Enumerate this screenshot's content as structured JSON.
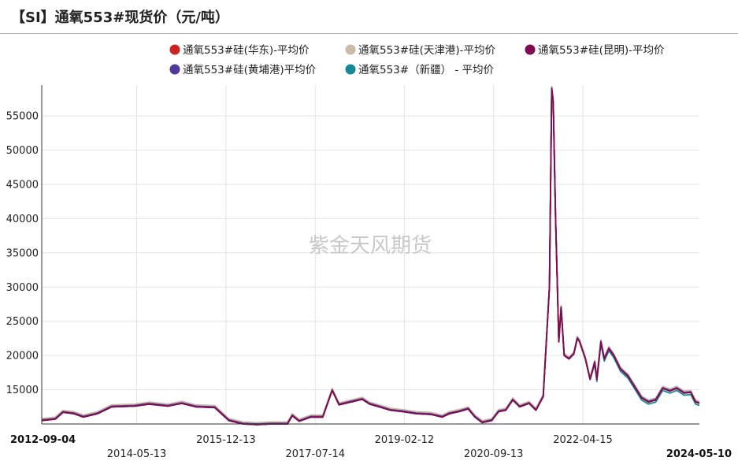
{
  "header": {
    "title": "【SI】通氧553#现货价（元/吨）"
  },
  "watermark": "紫金天风期货",
  "chart_data": {
    "type": "line",
    "title": "【SI】通氧553#现货价（元/吨）",
    "y_ticks": [
      15000,
      20000,
      25000,
      30000,
      35000,
      40000,
      45000,
      50000,
      55000
    ],
    "ylim": [
      10000,
      59500
    ],
    "x_range": [
      "2012-09-04",
      "2024-05-10"
    ],
    "x_ticks": [
      {
        "label": "2012-09-04",
        "bold": true
      },
      {
        "label": "2014-05-13",
        "bold": false
      },
      {
        "label": "2015-12-13",
        "bold": false
      },
      {
        "label": "2017-07-14",
        "bold": false
      },
      {
        "label": "2019-02-12",
        "bold": false
      },
      {
        "label": "2020-09-13",
        "bold": false
      },
      {
        "label": "2022-04-15",
        "bold": false
      },
      {
        "label": "2024-05-10",
        "bold": true
      }
    ],
    "grid": true,
    "legend_position": "top",
    "series": [
      {
        "name": "通氧553#硅(华东)-平均价",
        "color": "#cc2222",
        "offset": 0
      },
      {
        "name": "通氧553#硅(天津港)-平均价",
        "color": "#cbbba6",
        "offset": 300
      },
      {
        "name": "通氧553#硅(昆明)-平均价",
        "color": "#7d0c52",
        "offset": 0
      },
      {
        "name": "通氧553#硅(黄埔港)平均价",
        "color": "#4f3a9a",
        "offset": 100
      },
      {
        "name": "通氧553#（新疆）  - 平均价",
        "color": "#138a96",
        "offset": -300
      }
    ],
    "base_points": [
      [
        "2012-09-04",
        10500
      ],
      [
        "2012-12-01",
        10700
      ],
      [
        "2013-01-20",
        11700
      ],
      [
        "2013-04-01",
        11500
      ],
      [
        "2013-06-01",
        11000
      ],
      [
        "2013-09-01",
        11500
      ],
      [
        "2013-12-01",
        12500
      ],
      [
        "2014-05-01",
        12600
      ],
      [
        "2014-08-01",
        12900
      ],
      [
        "2014-12-01",
        12600
      ],
      [
        "2015-03-01",
        13000
      ],
      [
        "2015-06-01",
        12500
      ],
      [
        "2015-10-01",
        12400
      ],
      [
        "2016-01-01",
        10500
      ],
      [
        "2016-04-01",
        10000
      ],
      [
        "2016-07-01",
        9900
      ],
      [
        "2016-10-01",
        10000
      ],
      [
        "2017-01-15",
        10000
      ],
      [
        "2017-02-15",
        11200
      ],
      [
        "2017-04-01",
        10400
      ],
      [
        "2017-06-15",
        11000
      ],
      [
        "2017-09-01",
        11000
      ],
      [
        "2017-11-01",
        14900
      ],
      [
        "2017-12-15",
        12800
      ],
      [
        "2018-03-01",
        13200
      ],
      [
        "2018-05-15",
        13600
      ],
      [
        "2018-07-01",
        12900
      ],
      [
        "2018-09-01",
        12500
      ],
      [
        "2018-11-15",
        12000
      ],
      [
        "2019-02-01",
        11800
      ],
      [
        "2019-05-01",
        11500
      ],
      [
        "2019-08-01",
        11400
      ],
      [
        "2019-10-15",
        11000
      ],
      [
        "2019-12-01",
        11500
      ],
      [
        "2020-02-01",
        11800
      ],
      [
        "2020-04-01",
        12200
      ],
      [
        "2020-05-15",
        11000
      ],
      [
        "2020-07-01",
        10200
      ],
      [
        "2020-09-01",
        10500
      ],
      [
        "2020-10-15",
        11800
      ],
      [
        "2020-12-01",
        12000
      ],
      [
        "2021-01-15",
        13500
      ],
      [
        "2021-03-01",
        12500
      ],
      [
        "2021-05-01",
        13000
      ],
      [
        "2021-06-15",
        12000
      ],
      [
        "2021-08-01",
        14000
      ],
      [
        "2021-09-10",
        30000
      ],
      [
        "2021-09-25",
        59000
      ],
      [
        "2021-10-05",
        57000
      ],
      [
        "2021-10-20",
        40000
      ],
      [
        "2021-11-10",
        22000
      ],
      [
        "2021-11-25",
        27000
      ],
      [
        "2021-12-15",
        20000
      ],
      [
        "2022-01-15",
        19500
      ],
      [
        "2022-02-15",
        20200
      ],
      [
        "2022-03-10",
        22500
      ],
      [
        "2022-03-25",
        22000
      ],
      [
        "2022-05-01",
        19500
      ],
      [
        "2022-06-01",
        16500
      ],
      [
        "2022-07-01",
        19000
      ],
      [
        "2022-07-15",
        16500
      ],
      [
        "2022-08-10",
        22000
      ],
      [
        "2022-09-01",
        19500
      ],
      [
        "2022-10-01",
        21000
      ],
      [
        "2022-11-01",
        20000
      ],
      [
        "2022-12-15",
        18000
      ],
      [
        "2023-02-01",
        17000
      ],
      [
        "2023-03-15",
        15500
      ],
      [
        "2023-05-01",
        13800
      ],
      [
        "2023-06-15",
        13200
      ],
      [
        "2023-08-01",
        13500
      ],
      [
        "2023-09-15",
        15200
      ],
      [
        "2023-11-01",
        14800
      ],
      [
        "2023-12-15",
        15200
      ],
      [
        "2024-02-01",
        14500
      ],
      [
        "2024-03-15",
        14600
      ],
      [
        "2024-04-15",
        13200
      ],
      [
        "2024-05-10",
        13000
      ]
    ]
  }
}
